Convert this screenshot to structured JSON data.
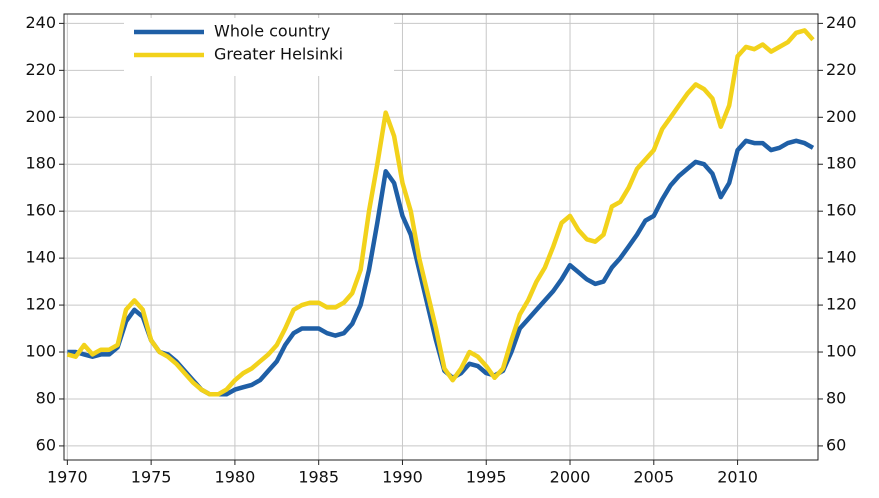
{
  "chart_data": {
    "type": "line",
    "x": [
      1970,
      1970.5,
      1971,
      1971.5,
      1972,
      1972.5,
      1973,
      1973.5,
      1974,
      1974.5,
      1975,
      1975.5,
      1976,
      1976.5,
      1977,
      1977.5,
      1978,
      1978.5,
      1979,
      1979.5,
      1980,
      1980.5,
      1981,
      1981.5,
      1982,
      1982.5,
      1983,
      1983.5,
      1984,
      1984.5,
      1985,
      1985.5,
      1986,
      1986.5,
      1987,
      1987.5,
      1988,
      1988.5,
      1989,
      1989.5,
      1990,
      1990.5,
      1991,
      1991.5,
      1992,
      1992.5,
      1993,
      1993.5,
      1994,
      1994.5,
      1995,
      1995.5,
      1996,
      1996.5,
      1997,
      1997.5,
      1998,
      1998.5,
      1999,
      1999.5,
      2000,
      2000.5,
      2001,
      2001.5,
      2002,
      2002.5,
      2003,
      2003.5,
      2004,
      2004.5,
      2005,
      2005.5,
      2006,
      2006.5,
      2007,
      2007.5,
      2008,
      2008.5,
      2009,
      2009.5,
      2010,
      2010.5,
      2011,
      2011.5,
      2012,
      2012.5,
      2013,
      2013.5,
      2014,
      2014.5
    ],
    "series": [
      {
        "name": "Whole country",
        "color": "#1f5fa6",
        "values": [
          100,
          100,
          99,
          98,
          99,
          99,
          102,
          113,
          118,
          115,
          105,
          100,
          99,
          96,
          92,
          88,
          84,
          82,
          82,
          82,
          84,
          85,
          86,
          88,
          92,
          96,
          103,
          108,
          110,
          110,
          110,
          108,
          107,
          108,
          112,
          120,
          135,
          155,
          177,
          172,
          158,
          150,
          135,
          120,
          105,
          92,
          89,
          91,
          95,
          94,
          91,
          90,
          92,
          100,
          110,
          114,
          118,
          122,
          126,
          131,
          137,
          134,
          131,
          129,
          130,
          136,
          140,
          145,
          150,
          156,
          158,
          165,
          171,
          175,
          178,
          181,
          180,
          176,
          166,
          172,
          186,
          190,
          189,
          189,
          186,
          187,
          189,
          190,
          189,
          187
        ]
      },
      {
        "name": "Greater Helsinki",
        "color": "#f2d21b",
        "values": [
          99,
          98,
          103,
          99,
          101,
          101,
          103,
          118,
          122,
          118,
          105,
          100,
          98,
          95,
          91,
          87,
          84,
          82,
          82,
          84,
          88,
          91,
          93,
          96,
          99,
          103,
          110,
          118,
          120,
          121,
          121,
          119,
          119,
          121,
          125,
          135,
          160,
          180,
          202,
          192,
          172,
          160,
          140,
          125,
          110,
          93,
          88,
          93,
          100,
          98,
          94,
          89,
          93,
          105,
          116,
          122,
          130,
          136,
          145,
          155,
          158,
          152,
          148,
          147,
          150,
          162,
          164,
          170,
          178,
          182,
          186,
          195,
          200,
          205,
          210,
          214,
          212,
          208,
          196,
          205,
          226,
          230,
          229,
          231,
          228,
          230,
          232,
          236,
          237,
          233
        ]
      }
    ],
    "xlim": [
      1969.8,
      2014.8
    ],
    "xticks": [
      1970,
      1975,
      1980,
      1985,
      1990,
      1995,
      2000,
      2005,
      2010
    ],
    "ylim": [
      54,
      244
    ],
    "yticks": [
      60,
      80,
      100,
      120,
      140,
      160,
      180,
      200,
      220,
      240
    ],
    "y2lim": [
      54,
      244
    ],
    "y2ticks": [
      60,
      80,
      100,
      120,
      140,
      160,
      180,
      200,
      220,
      240
    ],
    "grid": true,
    "legend": "upper left"
  }
}
